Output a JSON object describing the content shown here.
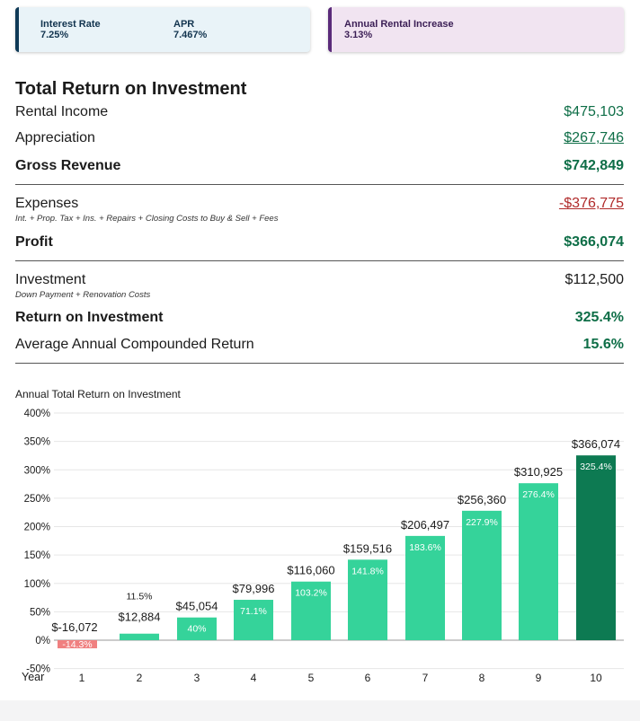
{
  "stats": {
    "interest_rate_label": "Interest Rate",
    "interest_rate_value": "7.25%",
    "apr_label": "APR",
    "apr_value": "7.467%",
    "rental_increase_label": "Annual Rental Increase",
    "rental_increase_value": "3.13%"
  },
  "summary": {
    "title": "Total Return on Investment",
    "rental_income_label": "Rental Income",
    "rental_income_value": "$475,103",
    "appreciation_label": "Appreciation",
    "appreciation_value": "$267,746",
    "gross_revenue_label": "Gross Revenue",
    "gross_revenue_value": "$742,849",
    "expenses_label": "Expenses",
    "expenses_sub": "Int. + Prop. Tax + Ins. + Repairs + Closing Costs to Buy & Sell + Fees",
    "expenses_value": "-$376,775",
    "profit_label": "Profit",
    "profit_value": "$366,074",
    "investment_label": "Investment",
    "investment_sub": "Down Payment + Renovation Costs",
    "investment_value": "$112,500",
    "roi_label": "Return on Investment",
    "roi_value": "325.4%",
    "avg_label": "Average Annual Compounded Return",
    "avg_value": "15.6%"
  },
  "colors": {
    "positive": "#0e6e47",
    "negative": "#b02a2a",
    "bar": "#35d39a",
    "bar_final": "#0d7a52",
    "bar_negative": "#f08080"
  },
  "chart_data": {
    "type": "bar",
    "title": "Annual Total Return on Investment",
    "xlabel": "Year",
    "ylabel": "",
    "ylim": [
      -50,
      400
    ],
    "yticks": [
      "400%",
      "350%",
      "300%",
      "250%",
      "200%",
      "150%",
      "100%",
      "50%",
      "0%",
      "-50%"
    ],
    "ytick_values": [
      400,
      350,
      300,
      250,
      200,
      150,
      100,
      50,
      0,
      -50
    ],
    "categories": [
      "1",
      "2",
      "3",
      "4",
      "5",
      "6",
      "7",
      "8",
      "9",
      "10"
    ],
    "values": [
      -14.3,
      11.5,
      40,
      71.1,
      103.2,
      141.8,
      183.6,
      227.9,
      276.4,
      325.4
    ],
    "percent_labels": [
      "-14.3%",
      "11.5%",
      "40%",
      "71.1%",
      "103.2%",
      "141.8%",
      "183.6%",
      "227.9%",
      "276.4%",
      "325.4%"
    ],
    "dollar_labels": [
      "$-16,072",
      "$12,884",
      "$45,054",
      "$79,996",
      "$116,060",
      "$159,516",
      "$206,497",
      "$256,360",
      "$310,925",
      "$366,074"
    ],
    "grid": true
  }
}
